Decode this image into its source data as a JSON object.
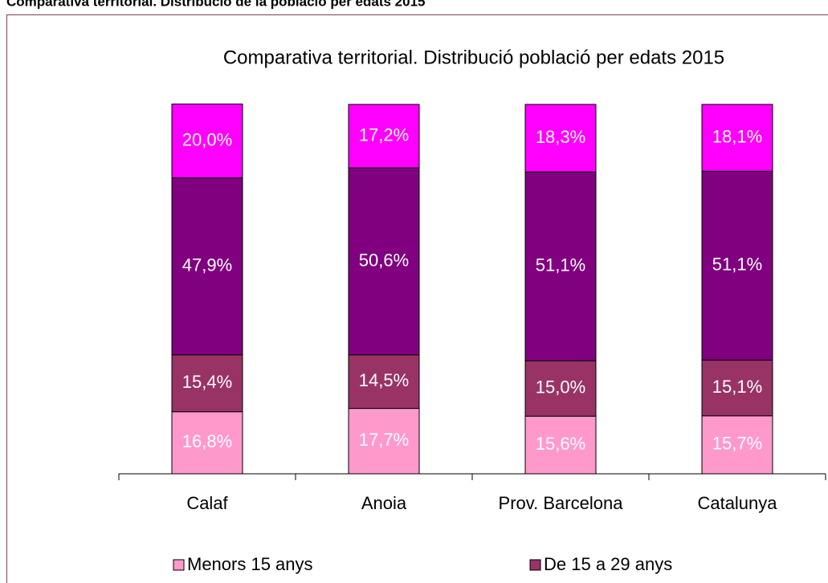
{
  "header": "Comparativa territorial. Distribució de la població per edats 2015",
  "chart_data": {
    "type": "stacked_bar",
    "title": "Comparativa territorial. Distribució població per edats 2015",
    "categories": [
      "Calaf",
      "Anoia",
      "Prov. Barcelona",
      "Catalunya"
    ],
    "ylim": [
      0,
      100
    ],
    "series": [
      {
        "name": "Menors 15 anys",
        "color": "#ff99cc",
        "values": [
          16.8,
          17.7,
          15.6,
          15.7
        ],
        "value_labels": [
          "16,8%",
          "17,7%",
          "15,6%",
          "15,7%"
        ]
      },
      {
        "name": "De 15 a 29 anys",
        "color": "#993366",
        "values": [
          15.4,
          14.5,
          15.0,
          15.1
        ],
        "value_labels": [
          "15,4%",
          "14,5%",
          "15,0%",
          "15,1%"
        ]
      },
      {
        "color": "#800080",
        "values": [
          47.9,
          50.6,
          51.1,
          51.1
        ],
        "value_labels": [
          "47,9%",
          "50,6%",
          "51,1%",
          "51,1%"
        ]
      },
      {
        "color": "#ff00ff",
        "values": [
          20.0,
          17.2,
          18.3,
          18.1
        ],
        "value_labels": [
          "20,0%",
          "17,2%",
          "18,3%",
          "18,1%"
        ]
      }
    ]
  }
}
